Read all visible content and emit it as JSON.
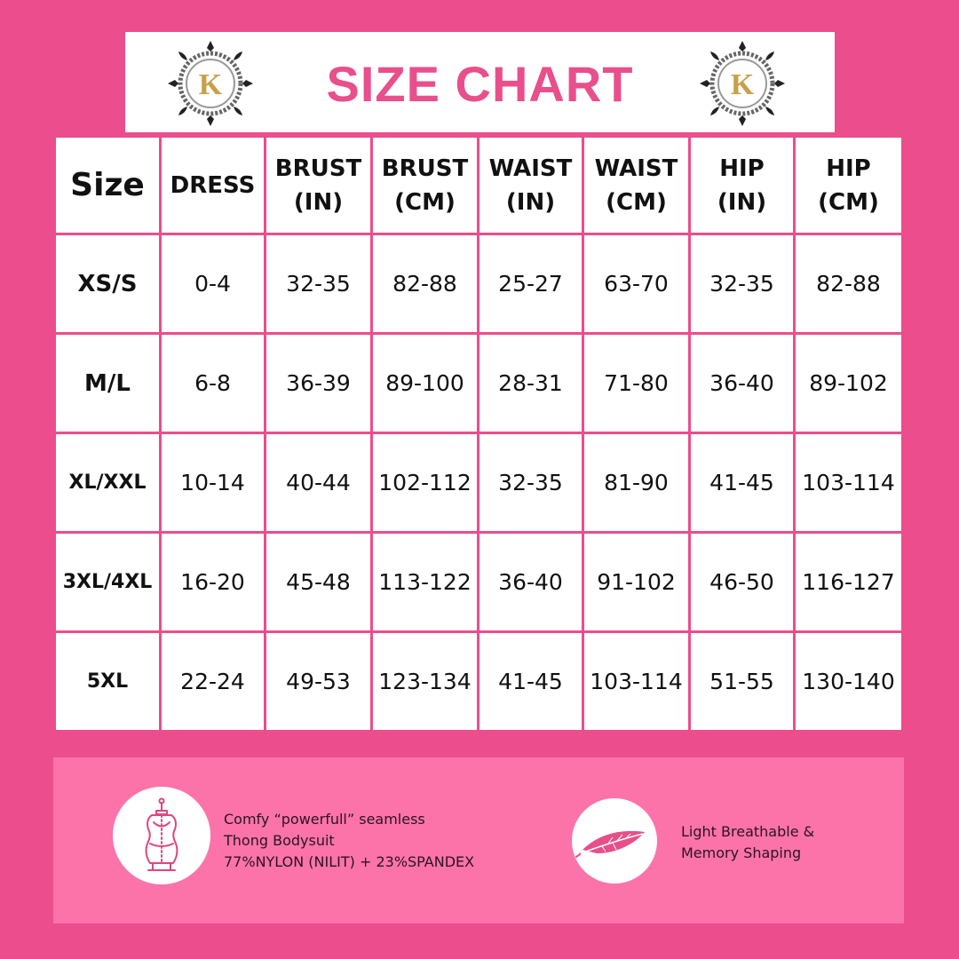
{
  "title": "SIZE CHART",
  "logo": {
    "icon": "k-monogram-emblem-icon"
  },
  "colors": {
    "background": "#ec4d8c",
    "accent_text": "#e94f8b",
    "footer": "#fc73aa"
  },
  "table": {
    "headers": [
      {
        "line1": "Size",
        "line2": ""
      },
      {
        "line1": "DRESS",
        "line2": ""
      },
      {
        "line1": "BRUST",
        "line2": "(IN)"
      },
      {
        "line1": "BRUST",
        "line2": "(CM)"
      },
      {
        "line1": "WAIST",
        "line2": "(IN)"
      },
      {
        "line1": "WAIST",
        "line2": "(CM)"
      },
      {
        "line1": "HIP",
        "line2": "(IN)"
      },
      {
        "line1": "HIP",
        "line2": "(CM)"
      }
    ],
    "rows": [
      {
        "size": "XS/S",
        "cells": [
          "0-4",
          "32-35",
          "82-88",
          "25-27",
          "63-70",
          "32-35",
          "82-88"
        ]
      },
      {
        "size": "M/L",
        "cells": [
          "6-8",
          "36-39",
          "89-100",
          "28-31",
          "71-80",
          "36-40",
          "89-102"
        ]
      },
      {
        "size": "XL/XXL",
        "cells": [
          "10-14",
          "40-44",
          "102-112",
          "32-35",
          "81-90",
          "41-45",
          "103-114"
        ]
      },
      {
        "size": "3XL/4XL",
        "cells": [
          "16-20",
          "45-48",
          "113-122",
          "36-40",
          "91-102",
          "46-50",
          "116-127"
        ]
      },
      {
        "size": "5XL",
        "cells": [
          "22-24",
          "49-53",
          "123-134",
          "41-45",
          "103-114",
          "51-55",
          "130-140"
        ]
      }
    ]
  },
  "footer": {
    "feature1": {
      "icon": "dress-form-mannequin-icon",
      "lines": [
        "Comfy “powerfull” seamless",
        "Thong Bodysuit",
        "77%NYLON (NILIT) + 23%SPANDEX"
      ]
    },
    "feature2": {
      "icon": "feather-icon",
      "lines": [
        "Light Breathable &",
        "Memory Shaping"
      ]
    }
  }
}
